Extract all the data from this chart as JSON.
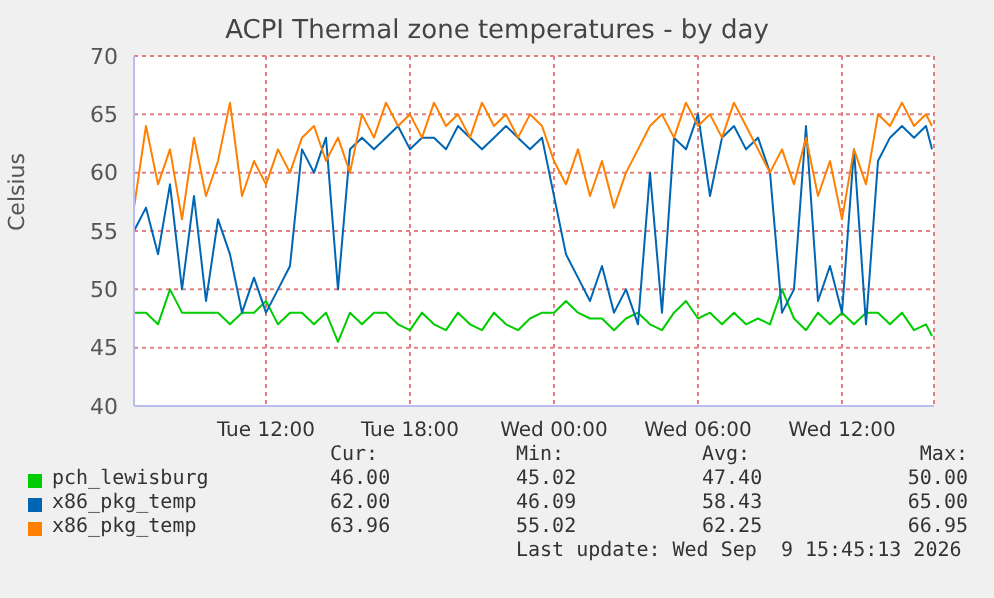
{
  "chart_data": {
    "type": "line",
    "title": "ACPI Thermal zone temperatures - by day",
    "ylabel": "Celsius",
    "x": [
      "2026-09-08T06:30",
      "2026-09-08T07:00",
      "2026-09-08T07:30",
      "2026-09-08T08:00",
      "2026-09-08T08:30",
      "2026-09-08T09:00",
      "2026-09-08T09:30",
      "2026-09-08T10:00",
      "2026-09-08T10:30",
      "2026-09-08T11:00",
      "2026-09-08T11:30",
      "2026-09-08T12:00",
      "2026-09-08T12:30",
      "2026-09-08T13:00",
      "2026-09-08T13:30",
      "2026-09-08T14:00",
      "2026-09-08T14:30",
      "2026-09-08T15:00",
      "2026-09-08T15:30",
      "2026-09-08T16:00",
      "2026-09-08T16:30",
      "2026-09-08T17:00",
      "2026-09-08T17:30",
      "2026-09-08T18:00",
      "2026-09-08T18:30",
      "2026-09-08T19:00",
      "2026-09-08T19:30",
      "2026-09-08T20:00",
      "2026-09-08T20:30",
      "2026-09-08T21:00",
      "2026-09-08T21:30",
      "2026-09-08T22:00",
      "2026-09-08T22:30",
      "2026-09-08T23:00",
      "2026-09-08T23:30",
      "2026-09-09T00:00",
      "2026-09-09T00:30",
      "2026-09-09T01:00",
      "2026-09-09T01:30",
      "2026-09-09T02:00",
      "2026-09-09T02:30",
      "2026-09-09T03:00",
      "2026-09-09T03:30",
      "2026-09-09T04:00",
      "2026-09-09T04:30",
      "2026-09-09T05:00",
      "2026-09-09T05:30",
      "2026-09-09T06:00",
      "2026-09-09T06:30",
      "2026-09-09T07:00",
      "2026-09-09T07:30",
      "2026-09-09T08:00",
      "2026-09-09T08:30",
      "2026-09-09T09:00",
      "2026-09-09T09:30",
      "2026-09-09T10:00",
      "2026-09-09T10:30",
      "2026-09-09T11:00",
      "2026-09-09T11:30",
      "2026-09-09T12:00",
      "2026-09-09T12:30",
      "2026-09-09T13:00",
      "2026-09-09T13:30",
      "2026-09-09T14:00",
      "2026-09-09T14:30",
      "2026-09-09T15:00",
      "2026-09-09T15:30",
      "2026-09-09T15:45"
    ],
    "series": [
      {
        "name": "pch_lewisburg",
        "color": "#00cc00",
        "values": [
          48,
          48,
          47,
          50,
          48,
          48,
          48,
          48,
          47,
          48,
          48,
          49,
          47,
          48,
          48,
          47,
          48,
          45.5,
          48,
          47,
          48,
          48,
          47,
          46.5,
          48,
          47,
          46.5,
          48,
          47,
          46.5,
          48,
          47,
          46.5,
          47.5,
          48,
          48,
          49,
          48,
          47.5,
          47.5,
          46.5,
          47.5,
          48,
          47,
          46.5,
          48,
          49,
          47.5,
          48,
          47,
          48,
          47,
          47.5,
          47,
          50,
          47.5,
          46.5,
          48,
          47,
          48,
          47,
          48,
          48,
          47,
          48,
          46.5,
          47,
          46
        ]
      },
      {
        "name": "x86_pkg_temp",
        "color": "#0066b3",
        "values": [
          55,
          57,
          53,
          59,
          50,
          58,
          49,
          56,
          53,
          48,
          51,
          48,
          50,
          52,
          62,
          60,
          63,
          50,
          62,
          63,
          62,
          63,
          64,
          62,
          63,
          63,
          62,
          64,
          63,
          62,
          63,
          64,
          63,
          62,
          63,
          58,
          53,
          51,
          49,
          52,
          48,
          50,
          47,
          60,
          48,
          63,
          62,
          65,
          58,
          63,
          64,
          62,
          63,
          60,
          48,
          50,
          64,
          49,
          52,
          48,
          62,
          47,
          61,
          63,
          64,
          63,
          64,
          62
        ]
      },
      {
        "name": "x86_pkg_temp",
        "color": "#ff8000",
        "values": [
          57,
          64,
          59,
          62,
          56,
          63,
          58,
          61,
          66,
          58,
          61,
          59,
          62,
          60,
          63,
          64,
          61,
          63,
          60,
          65,
          63,
          66,
          64,
          65,
          63,
          66,
          64,
          65,
          63,
          66,
          64,
          65,
          63,
          65,
          64,
          61,
          59,
          62,
          58,
          61,
          57,
          60,
          62,
          64,
          65,
          63,
          66,
          64,
          65,
          63,
          66,
          64,
          62,
          60,
          62,
          59,
          63,
          58,
          61,
          56,
          62,
          59,
          65,
          64,
          66,
          64,
          65,
          64
        ]
      }
    ],
    "xlim": [
      "2026-09-08T06:30",
      "2026-09-09T15:50"
    ],
    "xticks": [
      {
        "value": "2026-09-08T12:00",
        "label": "Tue 12:00"
      },
      {
        "value": "2026-09-08T18:00",
        "label": "Tue 18:00"
      },
      {
        "value": "2026-09-09T00:00",
        "label": "Wed 00:00"
      },
      {
        "value": "2026-09-09T06:00",
        "label": "Wed 06:00"
      },
      {
        "value": "2026-09-09T12:00",
        "label": "Wed 12:00"
      }
    ],
    "ylim": [
      40,
      70
    ],
    "yticks": [
      40,
      45,
      50,
      55,
      60,
      65,
      70
    ],
    "grid": true,
    "legend": "bottom",
    "annotations": [
      "Cur:",
      "Min:",
      "Avg:",
      "Max:",
      "46.00",
      "45.02",
      "47.40",
      "50.00",
      "62.00",
      "46.09",
      "58.43",
      "65.00",
      "63.96",
      "55.02",
      "62.25",
      "66.95",
      "Last update: Wed Sep  9 15:45:13 2026"
    ]
  }
}
